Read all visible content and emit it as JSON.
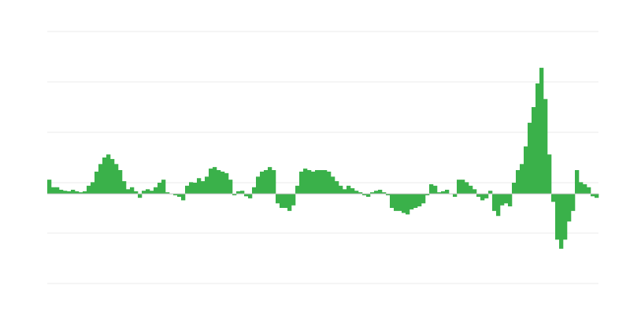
{
  "chart_data": {
    "type": "bar",
    "title": "",
    "xlabel": "",
    "ylabel": "",
    "ylim": [
      -1.78,
      3.22
    ],
    "gridlines": [
      3.22,
      2.22,
      1.22,
      0.22,
      -0.78,
      -1.78
    ],
    "grid": true,
    "legend": "none",
    "bar_color": "#3ab14a",
    "grid_color": "#ebebeb",
    "baseline_color": "#c8c8c8",
    "values": [
      0.28,
      0.13,
      0.13,
      0.08,
      0.06,
      0.05,
      0.08,
      0.05,
      0.03,
      0.05,
      0.16,
      0.23,
      0.44,
      0.59,
      0.72,
      0.78,
      0.69,
      0.59,
      0.47,
      0.25,
      0.09,
      0.13,
      0.05,
      -0.08,
      0.06,
      0.09,
      0.06,
      0.13,
      0.22,
      0.28,
      0.03,
      0,
      -0.03,
      -0.06,
      -0.13,
      0.16,
      0.23,
      0.22,
      0.31,
      0.25,
      0.34,
      0.5,
      0.53,
      0.47,
      0.44,
      0.41,
      0.28,
      -0.03,
      0.05,
      0.06,
      -0.05,
      -0.09,
      0.13,
      0.34,
      0.44,
      0.47,
      0.53,
      0.47,
      -0.19,
      -0.28,
      -0.28,
      -0.34,
      -0.23,
      0.16,
      0.44,
      0.5,
      0.47,
      0.44,
      0.47,
      0.47,
      0.47,
      0.44,
      0.34,
      0.25,
      0.16,
      0.09,
      0.16,
      0.11,
      0.06,
      0.03,
      -0.03,
      -0.06,
      0.03,
      0.06,
      0.08,
      0.03,
      -0.03,
      -0.28,
      -0.34,
      -0.34,
      -0.38,
      -0.41,
      -0.31,
      -0.28,
      -0.25,
      -0.19,
      -0.03,
      0.19,
      0.16,
      0.03,
      0.05,
      0.08,
      0,
      -0.06,
      0.28,
      0.28,
      0.23,
      0.16,
      0.09,
      -0.06,
      -0.13,
      -0.09,
      0.06,
      -0.34,
      -0.44,
      -0.23,
      -0.19,
      -0.25,
      0.22,
      0.47,
      0.59,
      0.94,
      1.41,
      1.72,
      2.19,
      2.5,
      1.88,
      0.78,
      -0.16,
      -0.91,
      -1.09,
      -0.91,
      -0.55,
      -0.34,
      0.47,
      0.23,
      0.19,
      0.13,
      -0.05,
      -0.08
    ]
  }
}
